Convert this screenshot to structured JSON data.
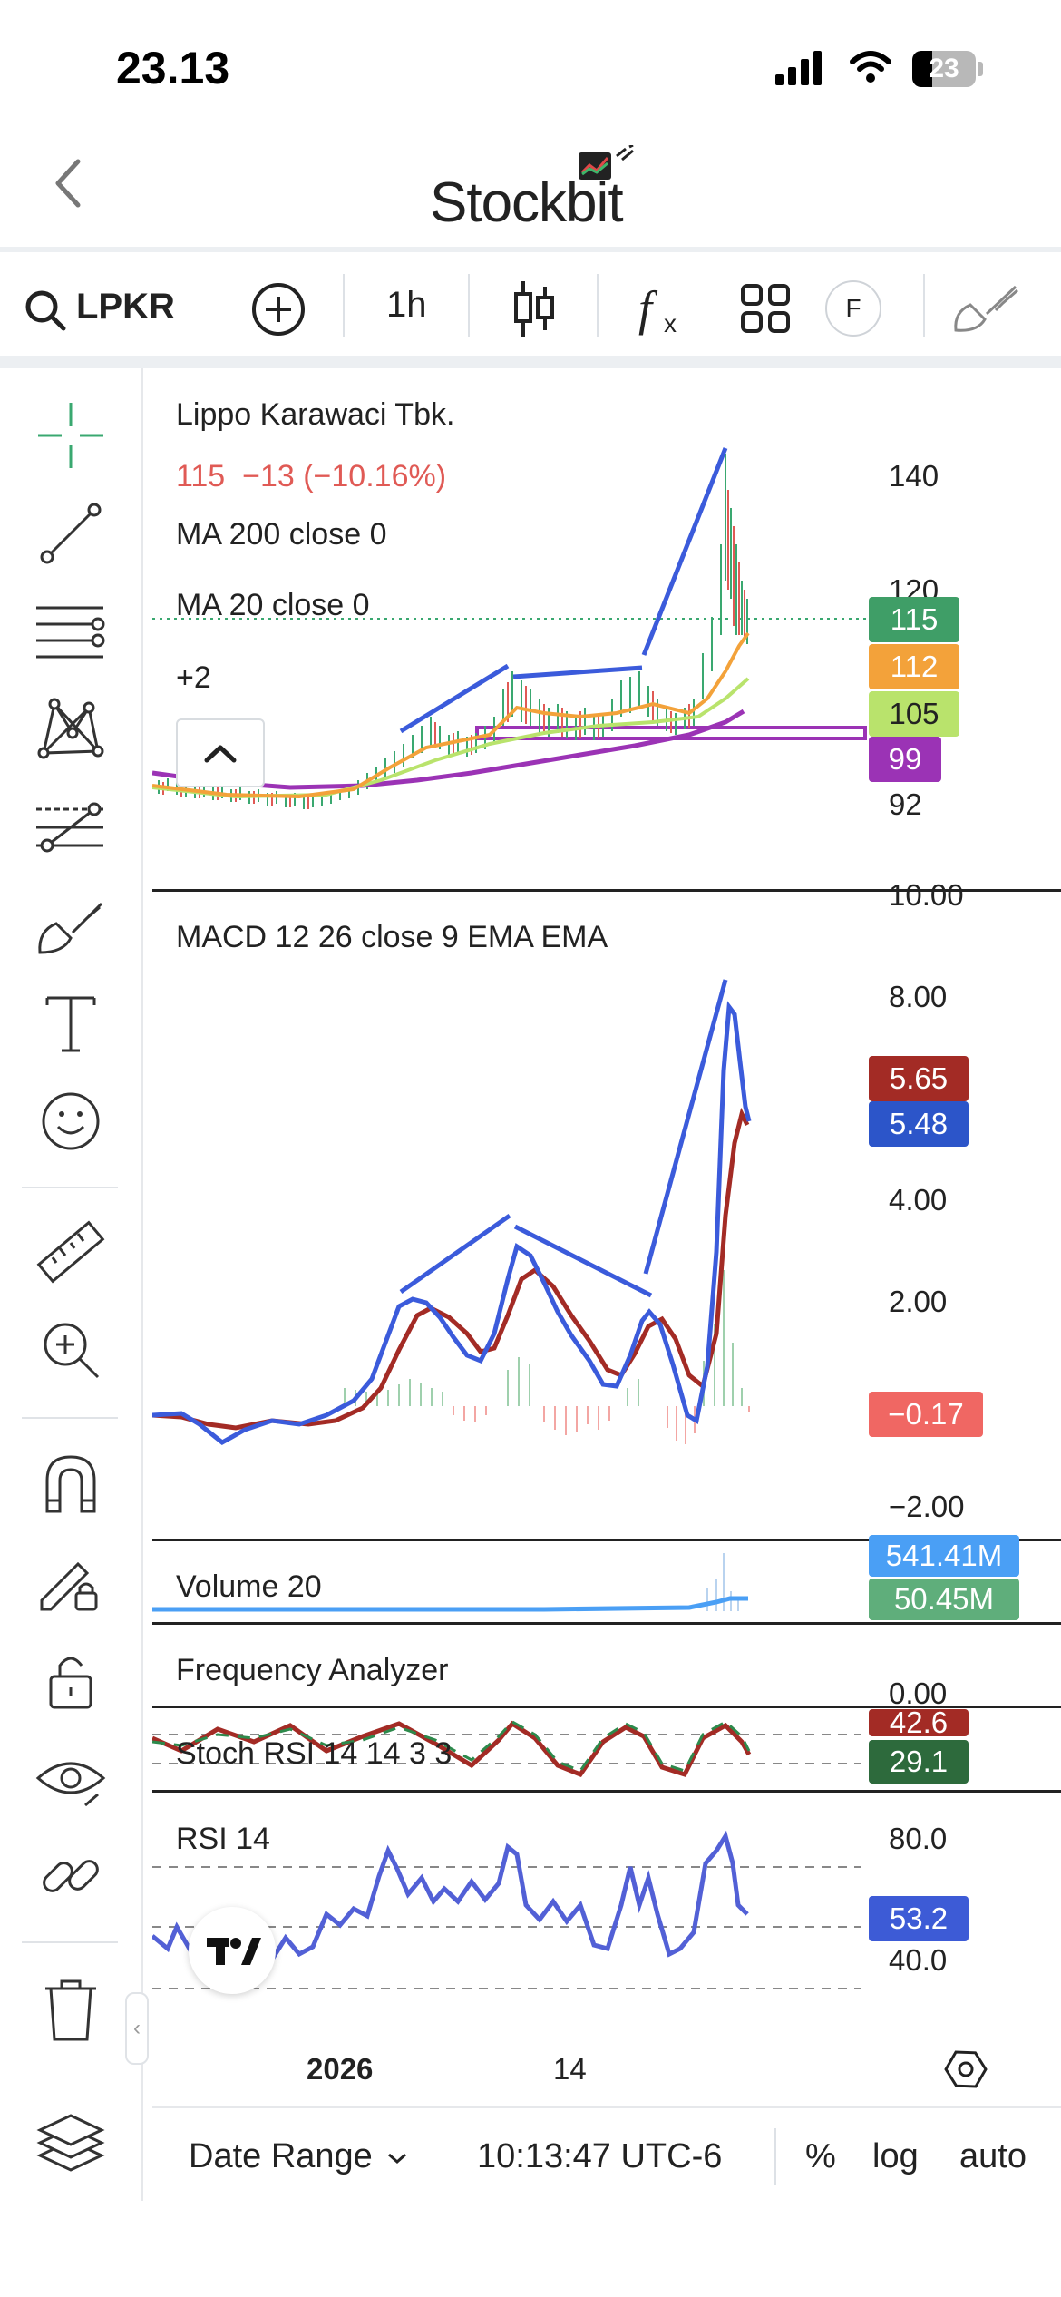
{
  "status_bar": {
    "time": "23.13",
    "battery": "23"
  },
  "header": {
    "logo_text": "Stockbit"
  },
  "toolbar": {
    "ticker": "LPKR",
    "interval": "1h",
    "f_label": "F"
  },
  "price_pane": {
    "name": "Lippo Karawaci Tbk.",
    "quote": "115  −13 (−10.16%)",
    "ma200": "MA 200 close 0",
    "ma20": "MA 20 close 0",
    "more": "+2",
    "axis": [
      "140",
      "120",
      "92"
    ],
    "badges": [
      {
        "text": "115",
        "color": "#3f9e67"
      },
      {
        "text": "112",
        "color": "#f3a23a"
      },
      {
        "text": "105",
        "color": "#b9e36c"
      },
      {
        "text": "99",
        "color": "#9b33b5"
      }
    ]
  },
  "macd_pane": {
    "title": "MACD 12 26 close 9 EMA EMA",
    "axis": [
      "10.00",
      "8.00",
      "4.00",
      "2.00",
      "−2.00"
    ],
    "badges": [
      {
        "text": "5.65",
        "color": "#a32b25"
      },
      {
        "text": "5.48",
        "color": "#2c55c9"
      },
      {
        "text": "−0.17",
        "color": "#f06763"
      }
    ]
  },
  "volume_pane": {
    "title": "Volume 20",
    "badges": [
      {
        "text": "541.41M",
        "color": "#4a9ff5"
      },
      {
        "text": "50.45M",
        "color": "#5fae7b"
      }
    ]
  },
  "frequency_pane": {
    "title": "Frequency Analyzer",
    "axis": "0.00"
  },
  "stoch_pane": {
    "title": "Stoch RSI 14 14 3 3",
    "badges": [
      {
        "text": "42.6",
        "color": "#a32b25"
      },
      {
        "text": "29.1",
        "color": "#2d6a3c"
      }
    ]
  },
  "rsi_pane": {
    "title": "RSI 14",
    "axis": [
      "80.0",
      "40.0"
    ],
    "badge": {
      "text": "53.2",
      "color": "#3d5bd6"
    }
  },
  "time_axis": {
    "labels": [
      "2026",
      "14"
    ]
  },
  "bottom_bar": {
    "date_range": "Date Range",
    "time": "10:13:47 UTC-6",
    "percent": "%",
    "log": "log",
    "auto": "auto"
  }
}
